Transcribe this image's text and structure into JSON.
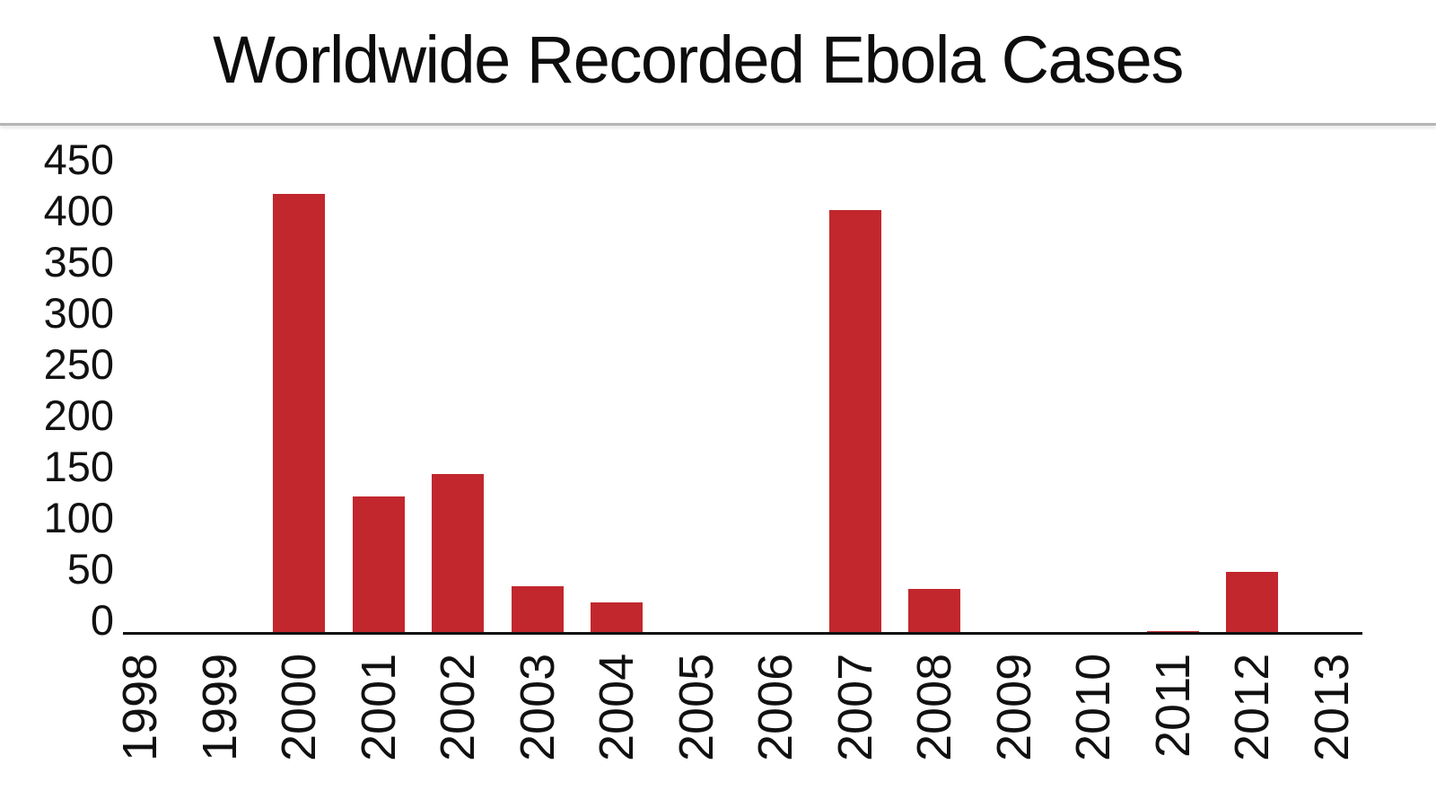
{
  "header": {
    "title": "Worldwide Recorded Ebola Cases"
  },
  "colors": {
    "bar": "#c1272d",
    "axis": "#111111",
    "divider": "#b5b5b5"
  },
  "y_axis": {
    "ticks": [
      "450",
      "400",
      "350",
      "300",
      "250",
      "200",
      "150",
      "100",
      "50",
      "0"
    ]
  },
  "x_axis": {
    "ticks": [
      "1998",
      "1999",
      "2000",
      "2001",
      "2002",
      "2003",
      "2004",
      "2005",
      "2006",
      "2007",
      "2008",
      "2009",
      "2010",
      "2011",
      "2012",
      "2013"
    ]
  },
  "chart_data": {
    "type": "bar",
    "title": "Worldwide Recorded Ebola Cases",
    "xlabel": "",
    "ylabel": "",
    "categories": [
      "1998",
      "1999",
      "2000",
      "2001",
      "2002",
      "2003",
      "2004",
      "2005",
      "2006",
      "2007",
      "2008",
      "2009",
      "2010",
      "2011",
      "2012",
      "2013"
    ],
    "values": [
      0,
      0,
      429,
      133,
      155,
      46,
      30,
      0,
      0,
      413,
      43,
      0,
      0,
      2,
      60,
      0
    ],
    "ylim": [
      0,
      450
    ],
    "yticks": [
      0,
      50,
      100,
      150,
      200,
      250,
      300,
      350,
      400,
      450
    ],
    "grid": false,
    "legend": null,
    "x_label_rotation": -90,
    "bar_color": "#c1272d"
  }
}
